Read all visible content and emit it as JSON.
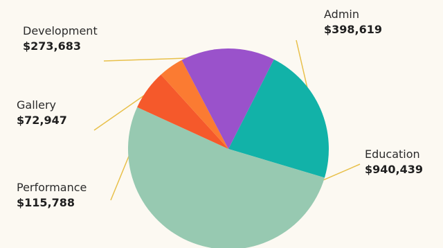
{
  "chart_data": {
    "type": "pie",
    "title": "",
    "slices": [
      {
        "label": "Admin",
        "value": 398619,
        "value_label": "$398,619",
        "color": "#12b2a8"
      },
      {
        "label": "Education",
        "value": 940439,
        "value_label": "$940,439",
        "color": "#97c9b1"
      },
      {
        "label": "Performance",
        "value": 115788,
        "value_label": "$115,788",
        "color": "#f5592b"
      },
      {
        "label": "Gallery",
        "value": 72947,
        "value_label": "$72,947",
        "color": "#fb7b32"
      },
      {
        "label": "Development",
        "value": 273683,
        "value_label": "$273,683",
        "color": "#9a52cb"
      }
    ],
    "leader_line_color": "#e8c04a",
    "legend": "none"
  }
}
